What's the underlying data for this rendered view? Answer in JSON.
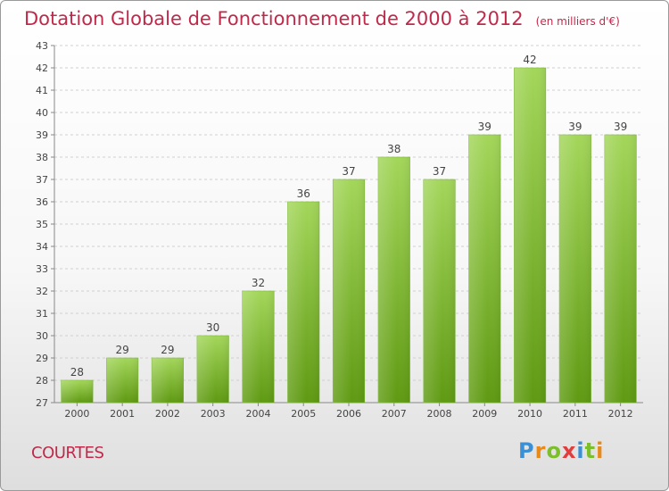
{
  "header": {
    "title": "Dotation Globale de Fonctionnement de 2000 à 2012",
    "unit": "(en milliers d'€)"
  },
  "footer": {
    "commune": "COURTES",
    "logo_text": "Proxiti"
  },
  "colors": {
    "title": "#c0294a",
    "bar_light": "#a3d65a",
    "bar_dark": "#5f9a12"
  },
  "chart_data": {
    "type": "bar",
    "title": "Dotation Globale de Fonctionnement de 2000 à 2012",
    "xlabel": "",
    "ylabel": "",
    "ylim": [
      27,
      43
    ],
    "yticks": [
      27,
      28,
      29,
      30,
      31,
      32,
      33,
      34,
      35,
      36,
      37,
      38,
      39,
      40,
      41,
      42,
      43
    ],
    "categories": [
      "2000",
      "2001",
      "2002",
      "2003",
      "2004",
      "2005",
      "2006",
      "2007",
      "2008",
      "2009",
      "2010",
      "2011",
      "2012"
    ],
    "values": [
      28,
      29,
      29,
      30,
      32,
      36,
      37,
      38,
      37,
      39,
      42,
      39,
      39
    ],
    "grid": true,
    "legend": "none"
  }
}
